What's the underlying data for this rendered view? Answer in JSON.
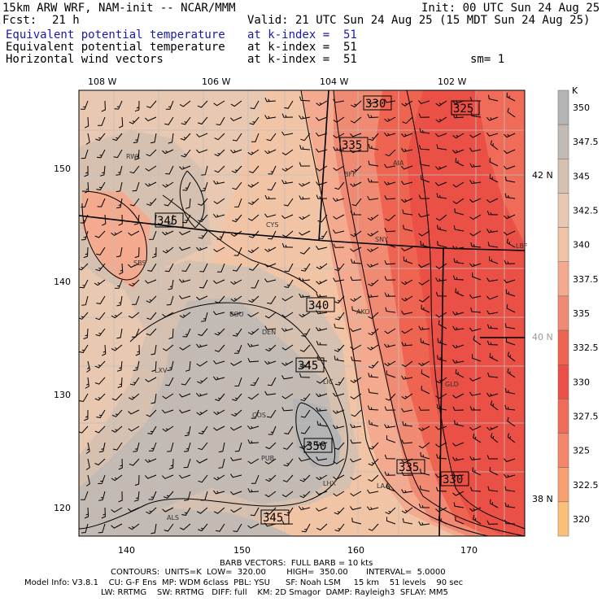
{
  "header": {
    "model": "15km ARW WRF, NAM-init -- NCAR/MMM",
    "init": "Init: 00 UTC Sun 24 Aug 25",
    "fcst_label": "Fcst:",
    "fcst_value": "21 h",
    "valid": "Valid: 21 UTC Sun 24 Aug 25 (15 MDT Sun 24 Aug 25)",
    "fields": [
      {
        "name": "Equivalent potential temperature",
        "level": "at k-index =  51"
      },
      {
        "name": "Equivalent potential temperature",
        "level": "at k-index =  51"
      },
      {
        "name": "Horizontal wind vectors",
        "level": "at k-index =  51"
      }
    ],
    "smoothing": "sm= 1"
  },
  "map": {
    "top_ticks": [
      {
        "label": "108 W",
        "x": 108
      },
      {
        "label": "106 W",
        "x": 106
      },
      {
        "label": "104 W",
        "x": 104
      },
      {
        "label": "102 W",
        "x": 102
      }
    ],
    "right_ticks": [
      {
        "label": "42 N",
        "y": 42
      },
      {
        "label": "40 N",
        "y": 40
      },
      {
        "label": "38 N",
        "y": 38
      }
    ],
    "left_ticks": [
      "150",
      "140",
      "130",
      "120"
    ],
    "bottom_ticks": [
      "140",
      "150",
      "160",
      "170"
    ],
    "cities": [
      "RWL",
      "BFF",
      "AIA",
      "CYS",
      "SNY",
      "LBF",
      "SBS",
      "BOU",
      "DEN",
      "AKO",
      "LXV",
      "LIC",
      "COS",
      "GLD",
      "PUB",
      "LHX",
      "LAA",
      "ALS"
    ],
    "contour_labels": [
      "330",
      "325",
      "335",
      "345",
      "340",
      "345",
      "350",
      "335",
      "330",
      "345"
    ],
    "colors": {
      "c320": "#fbc078",
      "c322": "#f9a070",
      "c325": "#f5866a",
      "c327": "#f06c58",
      "c330": "#ea5046",
      "c332": "#ef6450",
      "c335": "#f18a72",
      "c337": "#f4aa8e",
      "c340": "#f2c4a6",
      "c342": "#e8c8b0",
      "c345": "#d6c0b0",
      "c347": "#c4bab4",
      "c350": "#b4b4b4"
    }
  },
  "colorbar": {
    "unit": "K",
    "labels": [
      "350",
      "347.5",
      "345",
      "342.5",
      "340",
      "337.5",
      "335",
      "332.5",
      "330",
      "327.5",
      "325",
      "322.5",
      "320"
    ],
    "colors": [
      "#b4b4b4",
      "#c4bab4",
      "#d6c0b0",
      "#e8c8b0",
      "#f2c4a6",
      "#f4aa8e",
      "#f18a72",
      "#ef6450",
      "#ea5046",
      "#f06c58",
      "#f5866a",
      "#f9a070",
      "#fbc078"
    ]
  },
  "footer": {
    "barb_line": "BARB VECTORS:  FULL BARB = 10 kts",
    "contours_line": "CONTOURS:  UNITS=K  LOW=  320.00        HIGH=  350.00       INTERVAL=  5.0000",
    "model_info_1": "Model Info: V3.8.1    CU: G-F Ens  MP: WDM 6class  PBL: YSU      SF: Noah LSM     15 km    51 levels    90 sec",
    "model_info_2": "LW: RRTMG    SW: RRTMG   DIFF: full    KM: 2D Smagor  DAMP: Rayleigh3  SFLAY: MM5"
  }
}
